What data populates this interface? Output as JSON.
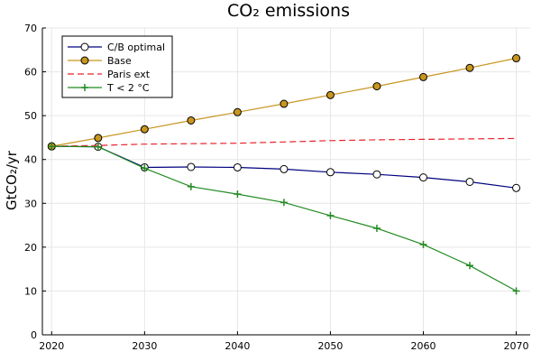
{
  "chart_data": {
    "type": "line",
    "title": "CO₂ emissions",
    "xlabel": "",
    "ylabel": "GtCO₂/yr",
    "xlim": [
      2019,
      2071.5
    ],
    "ylim": [
      0,
      70
    ],
    "xticks": [
      2020,
      2030,
      2040,
      2050,
      2060,
      2070
    ],
    "yticks": [
      0,
      10,
      20,
      30,
      40,
      50,
      60,
      70
    ],
    "grid": true,
    "legend_position": "top-left",
    "series": [
      {
        "name": "C/B optimal",
        "color": "#000080",
        "marker": "circle-open",
        "dash": "solid",
        "x": [
          2020,
          2025,
          2030,
          2035,
          2040,
          2045,
          2050,
          2055,
          2060,
          2065,
          2070
        ],
        "y": [
          43.0,
          42.9,
          38.2,
          38.3,
          38.2,
          37.8,
          37.1,
          36.6,
          35.9,
          34.9,
          33.5
        ]
      },
      {
        "name": "Base",
        "color": "#c8961e",
        "marker": "circle-filled",
        "dash": "solid",
        "x": [
          2020,
          2025,
          2030,
          2035,
          2040,
          2045,
          2050,
          2055,
          2060,
          2065,
          2070
        ],
        "y": [
          43.0,
          44.9,
          46.9,
          48.9,
          50.8,
          52.7,
          54.7,
          56.7,
          58.8,
          60.9,
          63.1
        ]
      },
      {
        "name": "Paris ext",
        "color": "#e8232b",
        "marker": "none",
        "dash": "dashed",
        "x": [
          2020,
          2025,
          2030,
          2035,
          2040,
          2045,
          2050,
          2055,
          2060,
          2065,
          2070
        ],
        "y": [
          43.0,
          43.2,
          43.5,
          43.6,
          43.7,
          44.0,
          44.3,
          44.5,
          44.6,
          44.7,
          44.8
        ]
      },
      {
        "name": "T < 2 °C",
        "color": "#228b22",
        "marker": "plus",
        "dash": "solid",
        "x": [
          2020,
          2025,
          2030,
          2035,
          2040,
          2045,
          2050,
          2055,
          2060,
          2065,
          2070
        ],
        "y": [
          43.0,
          42.9,
          38.0,
          33.8,
          32.1,
          30.2,
          27.2,
          24.3,
          20.6,
          15.8,
          10.0
        ]
      }
    ]
  }
}
